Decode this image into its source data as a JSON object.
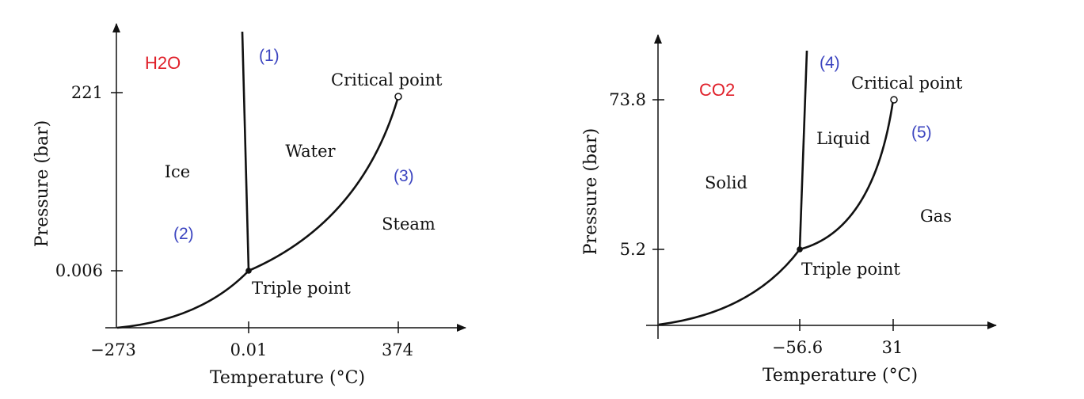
{
  "colors": {
    "substance_label": "#e0202a",
    "curve_number": "#3c45c0",
    "ink": "#111111"
  },
  "diagrams": [
    {
      "substance": "H2O",
      "axis_x_label": "Temperature (°C)",
      "axis_y_label": "Pressure (bar)",
      "x_ticks": [
        "−273",
        "0.01",
        "374"
      ],
      "y_ticks": [
        "221",
        "0.006"
      ],
      "regions": {
        "solid": "Ice",
        "liquid": "Water",
        "gas": "Steam"
      },
      "triple_point": "Triple point",
      "critical_point": "Critical point",
      "curve_numbers": [
        "(1)",
        "(2)",
        "(3)"
      ]
    },
    {
      "substance": "CO2",
      "axis_x_label": "Temperature (°C)",
      "axis_y_label": "Pressure (bar)",
      "x_ticks": [
        "−56.6",
        "31"
      ],
      "y_ticks": [
        "73.8",
        "5.2"
      ],
      "regions": {
        "solid": "Solid",
        "liquid": "Liquid",
        "gas": "Gas"
      },
      "triple_point": "Triple point",
      "critical_point": "Critical point",
      "curve_numbers": [
        "(4)",
        "(5)"
      ]
    }
  ]
}
